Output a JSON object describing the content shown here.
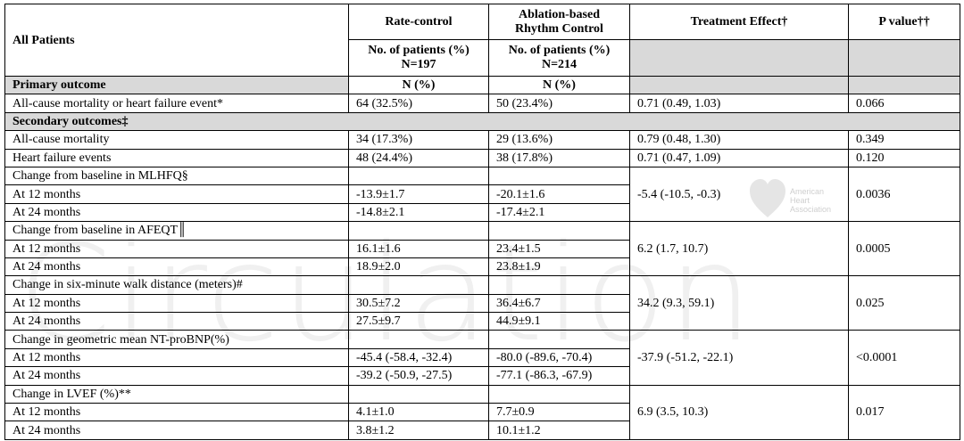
{
  "header": {
    "row_label": "All Patients",
    "rate_control": "Rate-control",
    "rhythm_control": [
      "Ablation-based",
      "Rhythm Control"
    ],
    "treatment_effect": "Treatment Effect†",
    "p_value": "P value††",
    "rate_n": [
      "No. of patients (%)",
      "N=197"
    ],
    "rhythm_n": [
      "No. of patients (%)",
      "N=214"
    ]
  },
  "primary": {
    "label": "Primary outcome",
    "rate_unit": "N (%)",
    "rhythm_unit": "N (%)"
  },
  "rows": [
    {
      "label": "All-cause mortality or heart failure event*",
      "rate": "64 (32.5%)",
      "rhythm": "50 (23.4%)",
      "effect": "0.71 (0.49, 1.03)",
      "p": "0.066"
    },
    {
      "section": "Secondary outcomes‡"
    },
    {
      "label": "All-cause mortality",
      "rate": "34 (17.3%)",
      "rhythm": "29 (13.6%)",
      "effect": "0.79 (0.48, 1.30)",
      "p": "0.349"
    },
    {
      "label": "Heart failure events",
      "rate": "48 (24.4%)",
      "rhythm": "38 (17.8%)",
      "effect": "0.71 (0.47, 1.09)",
      "p": "0.120"
    },
    {
      "label": "Change from baseline in MLHFQ§",
      "effect": "-5.4 (-10.5, -0.3)",
      "p": "0.0036",
      "subrows": [
        {
          "label": "At 12 months",
          "rate": "-13.9±1.7",
          "rhythm": "-20.1±1.6"
        },
        {
          "label": "At 24 months",
          "rate": "-14.8±2.1",
          "rhythm": "-17.4±2.1"
        }
      ]
    },
    {
      "label": "Change from baseline in AFEQT║",
      "effect": "6.2 (1.7, 10.7)",
      "p": "0.0005",
      "subrows": [
        {
          "label": "At 12 months",
          "rate": "16.1±1.6",
          "rhythm": "23.4±1.5"
        },
        {
          "label": "At 24 months",
          "rate": "18.9±2.0",
          "rhythm": "23.8±1.9"
        }
      ]
    },
    {
      "label": "Change in six-minute walk distance (meters)#",
      "effect": "34.2 (9.3, 59.1)",
      "p": "0.025",
      "subrows": [
        {
          "label": "At 12 months",
          "rate": "30.5±7.2",
          "rhythm": "36.4±6.7"
        },
        {
          "label": "At 24 months",
          "rate": "27.5±9.7",
          "rhythm": "44.9±9.1"
        }
      ]
    },
    {
      "label": "Change in geometric mean NT-proBNP(%)",
      "effect": "-37.9 (-51.2, -22.1)",
      "p": "<0.0001",
      "subrows": [
        {
          "label": "At 12 months",
          "rate": "-45.4 (-58.4, -32.4)",
          "rhythm": "-80.0 (-89.6, -70.4)"
        },
        {
          "label": "At 24 months",
          "rate": "-39.2 (-50.9, -27.5)",
          "rhythm": "-77.1 (-86.3, -67.9)"
        }
      ]
    },
    {
      "label": "Change in LVEF (%)**",
      "effect": "6.9 (3.5, 10.3)",
      "p": "0.017",
      "subrows": [
        {
          "label": "At 12 months",
          "rate": "4.1±1.0",
          "rhythm": "7.7±0.9"
        },
        {
          "label": "At 24 months",
          "rate": "3.8±1.2",
          "rhythm": "10.1±1.2"
        }
      ]
    }
  ],
  "watermark": "Circulation",
  "logo": [
    "American",
    "Heart",
    "Association"
  ]
}
